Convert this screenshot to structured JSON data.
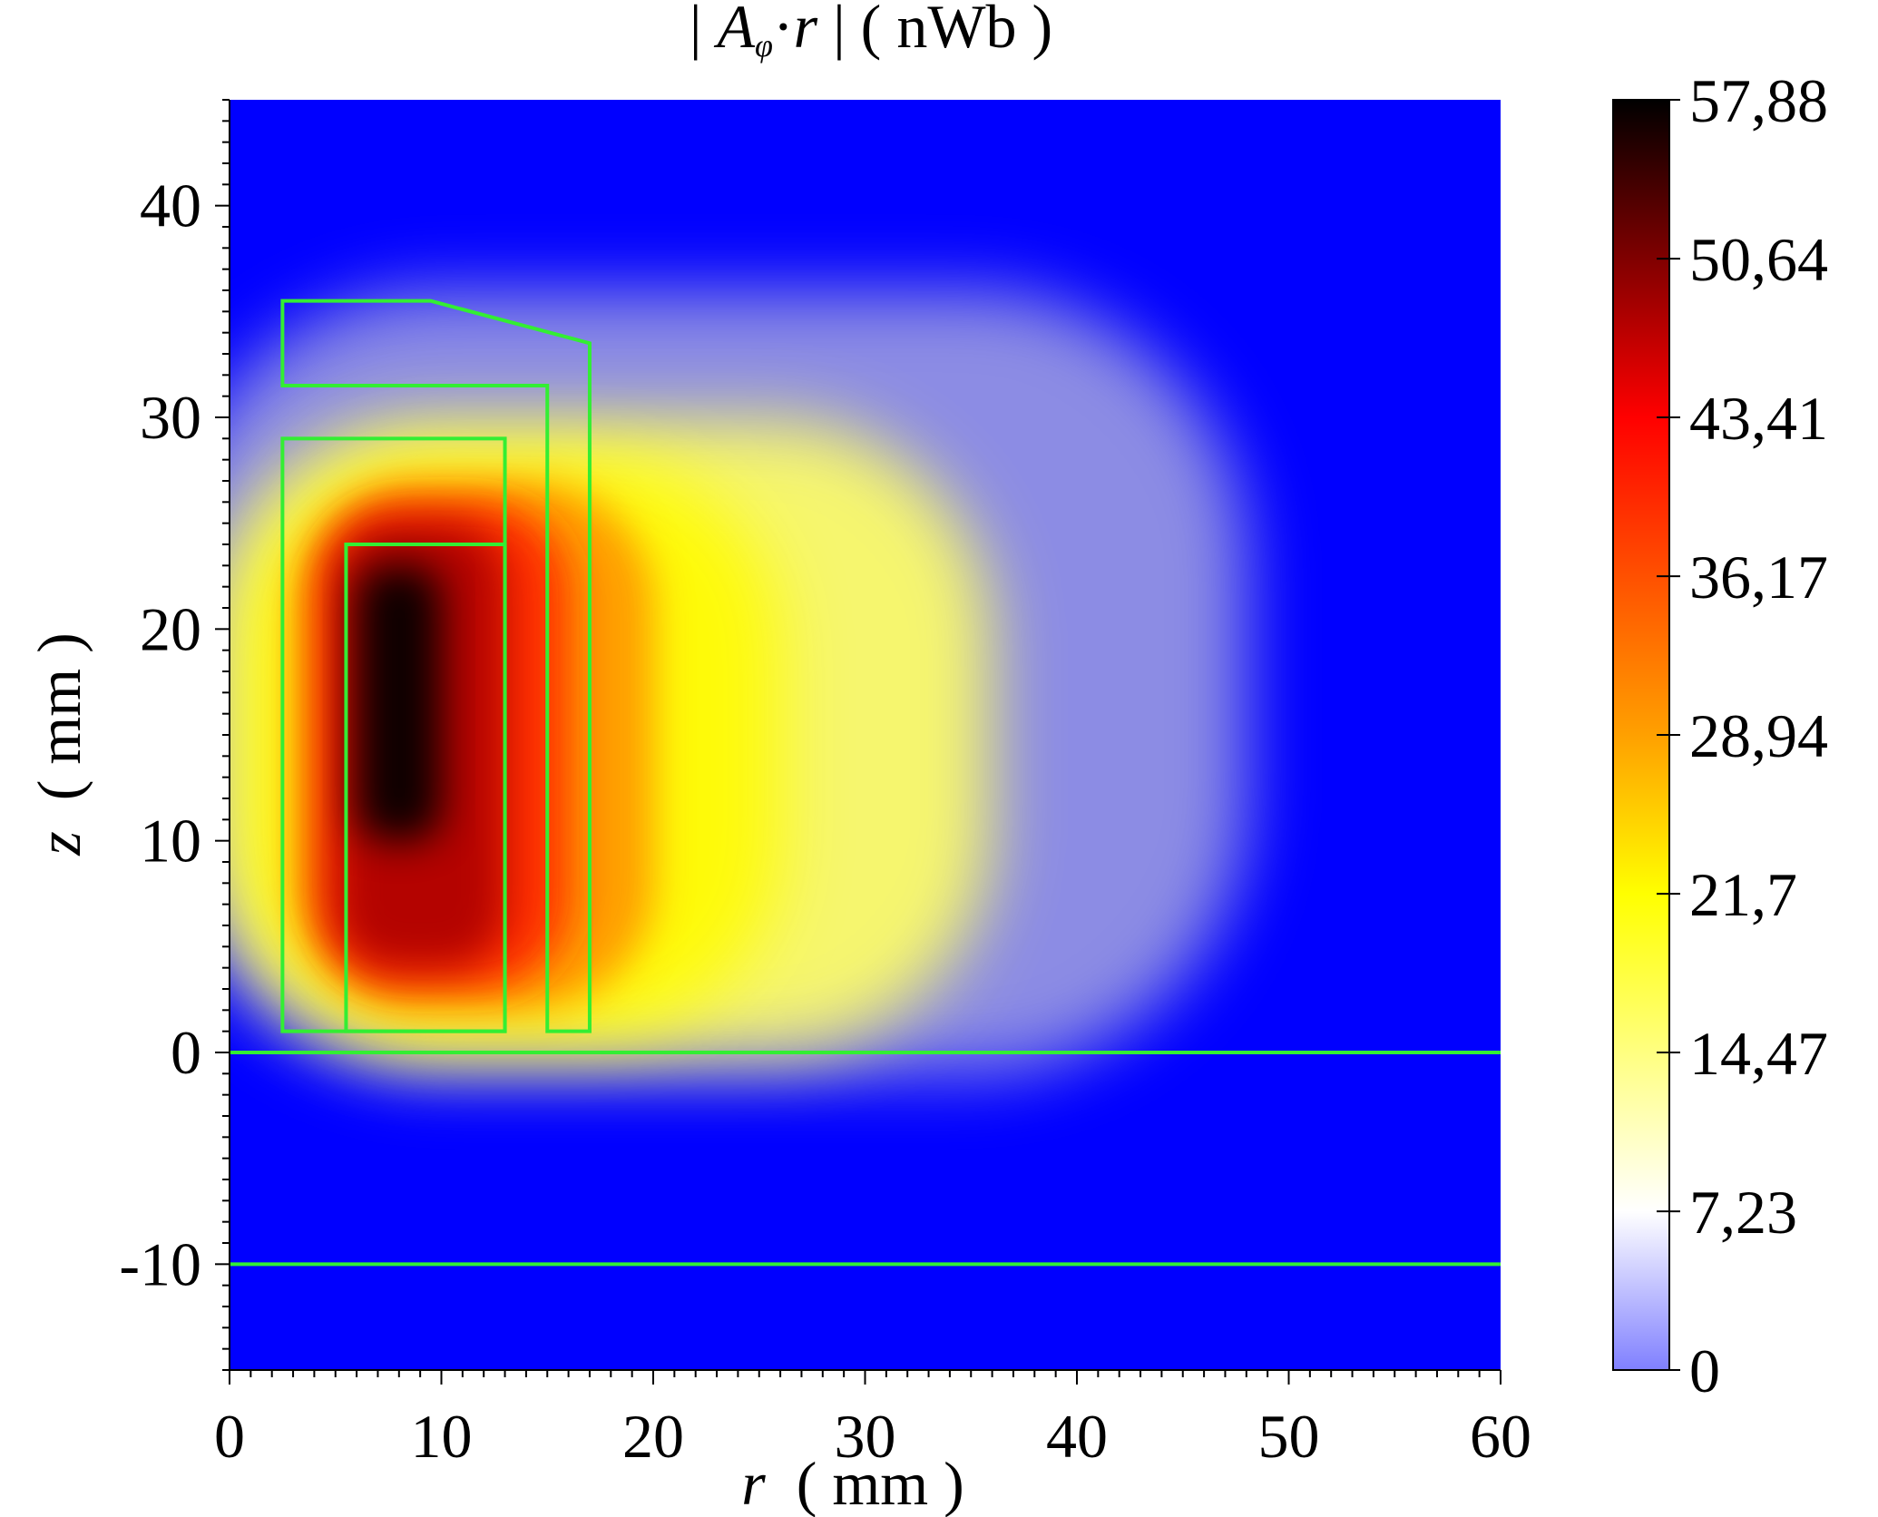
{
  "chart_data": {
    "type": "heatmap",
    "title": {
      "pre": "| ",
      "symbol": "A",
      "subscript": "φ",
      "dot": "·",
      "r": "r",
      "post": " |  ( nWb )"
    },
    "xlabel": {
      "var": "r",
      "unit": "  ( mm )"
    },
    "ylabel": {
      "var": "z",
      "unit": "  ( mm )"
    },
    "xlim": [
      0,
      60
    ],
    "ylim": [
      -15,
      45
    ],
    "x_ticks": [
      "0",
      "10",
      "20",
      "30",
      "40",
      "50",
      "60"
    ],
    "x_tick_values": [
      0,
      10,
      20,
      30,
      40,
      50,
      60
    ],
    "y_ticks": [
      "-10",
      "0",
      "10",
      "20",
      "30",
      "40"
    ],
    "y_tick_values": [
      -10,
      0,
      10,
      20,
      30,
      40
    ],
    "colorbar": {
      "range": [
        0,
        57.88
      ],
      "tick_labels": [
        "0",
        "7,23",
        "14,47",
        "21,7",
        "28,94",
        "36,17",
        "43,41",
        "50,64",
        "57,88"
      ],
      "tick_values": [
        0,
        7.23,
        14.47,
        21.7,
        28.94,
        36.17,
        43.41,
        50.64,
        57.88
      ],
      "colors": [
        "#8080ff",
        "#ffffff",
        "#ffff80",
        "#ffff00",
        "#ffa000",
        "#ff5000",
        "#ff0000",
        "#800000",
        "#000000"
      ]
    },
    "field_peak": {
      "r": 7.5,
      "z": 18,
      "value": 57.88
    },
    "background_color": "#0000ff",
    "boundary_color": "#33ee33",
    "boundaries": [
      {
        "name": "outer-pole-piece",
        "points": [
          [
            2.5,
            35.5
          ],
          [
            9.5,
            35.5
          ],
          [
            17,
            33.5
          ],
          [
            17,
            1
          ],
          [
            15,
            1
          ],
          [
            15,
            31.5
          ],
          [
            2.5,
            31.5
          ]
        ]
      },
      {
        "name": "coil-housing",
        "points": [
          [
            2.5,
            29
          ],
          [
            13,
            29
          ],
          [
            13,
            1
          ],
          [
            2.5,
            1
          ]
        ]
      },
      {
        "name": "inner-core",
        "points": [
          [
            5.5,
            24
          ],
          [
            13,
            24
          ],
          [
            13,
            1
          ],
          [
            5.5,
            1
          ]
        ]
      },
      {
        "name": "interface-line-0",
        "points": [
          [
            0,
            0
          ],
          [
            60,
            0
          ]
        ]
      },
      {
        "name": "interface-line-minus-10",
        "points": [
          [
            0,
            -10
          ],
          [
            60,
            -10
          ]
        ]
      }
    ]
  }
}
